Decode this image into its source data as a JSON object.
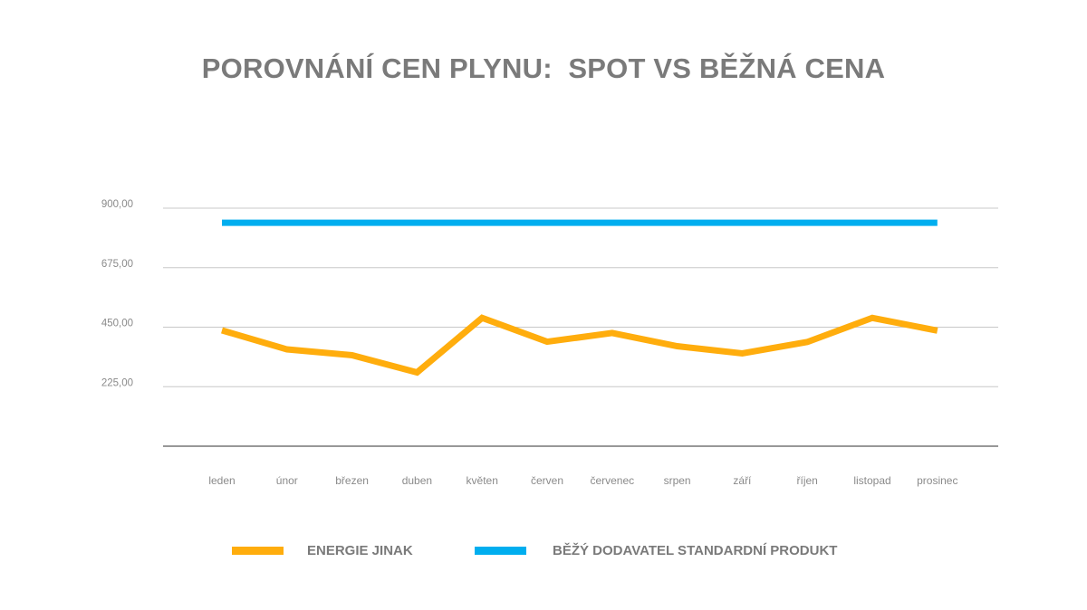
{
  "chart_data": {
    "type": "line",
    "title": "POROVNÁNÍ CEN PLYNU:  SPOT VS BĚŽNÁ CENA",
    "categories": [
      "leden",
      "únor",
      "březen",
      "duben",
      "květen",
      "červen",
      "červenec",
      "srpen",
      "září",
      "říjen",
      "listopad",
      "prosinec"
    ],
    "ylim": [
      0,
      900
    ],
    "yticks": [
      225,
      450,
      675,
      900
    ],
    "ytick_labels": [
      "225,00",
      "450,00",
      "675,00",
      "900,00"
    ],
    "grid": true,
    "legend_position": "bottom",
    "series": [
      {
        "name": "ENERGIE JINAK",
        "color": "#FFAD0D",
        "values": [
          438,
          366,
          344,
          279,
          485,
          395,
          428,
          378,
          351,
          394,
          485,
          437
        ]
      },
      {
        "name": "BĚŽÝ DODAVATEL STANDARDNÍ PRODUKT",
        "color": "#00AEEF",
        "values": [
          845,
          845,
          845,
          845,
          845,
          845,
          845,
          845,
          845,
          845,
          845,
          845
        ]
      }
    ],
    "colors": {
      "gridline": "#c8c8c8",
      "axis": "#777777",
      "label_text": "#8a8a8a",
      "title_text": "#7a7a7a"
    }
  }
}
